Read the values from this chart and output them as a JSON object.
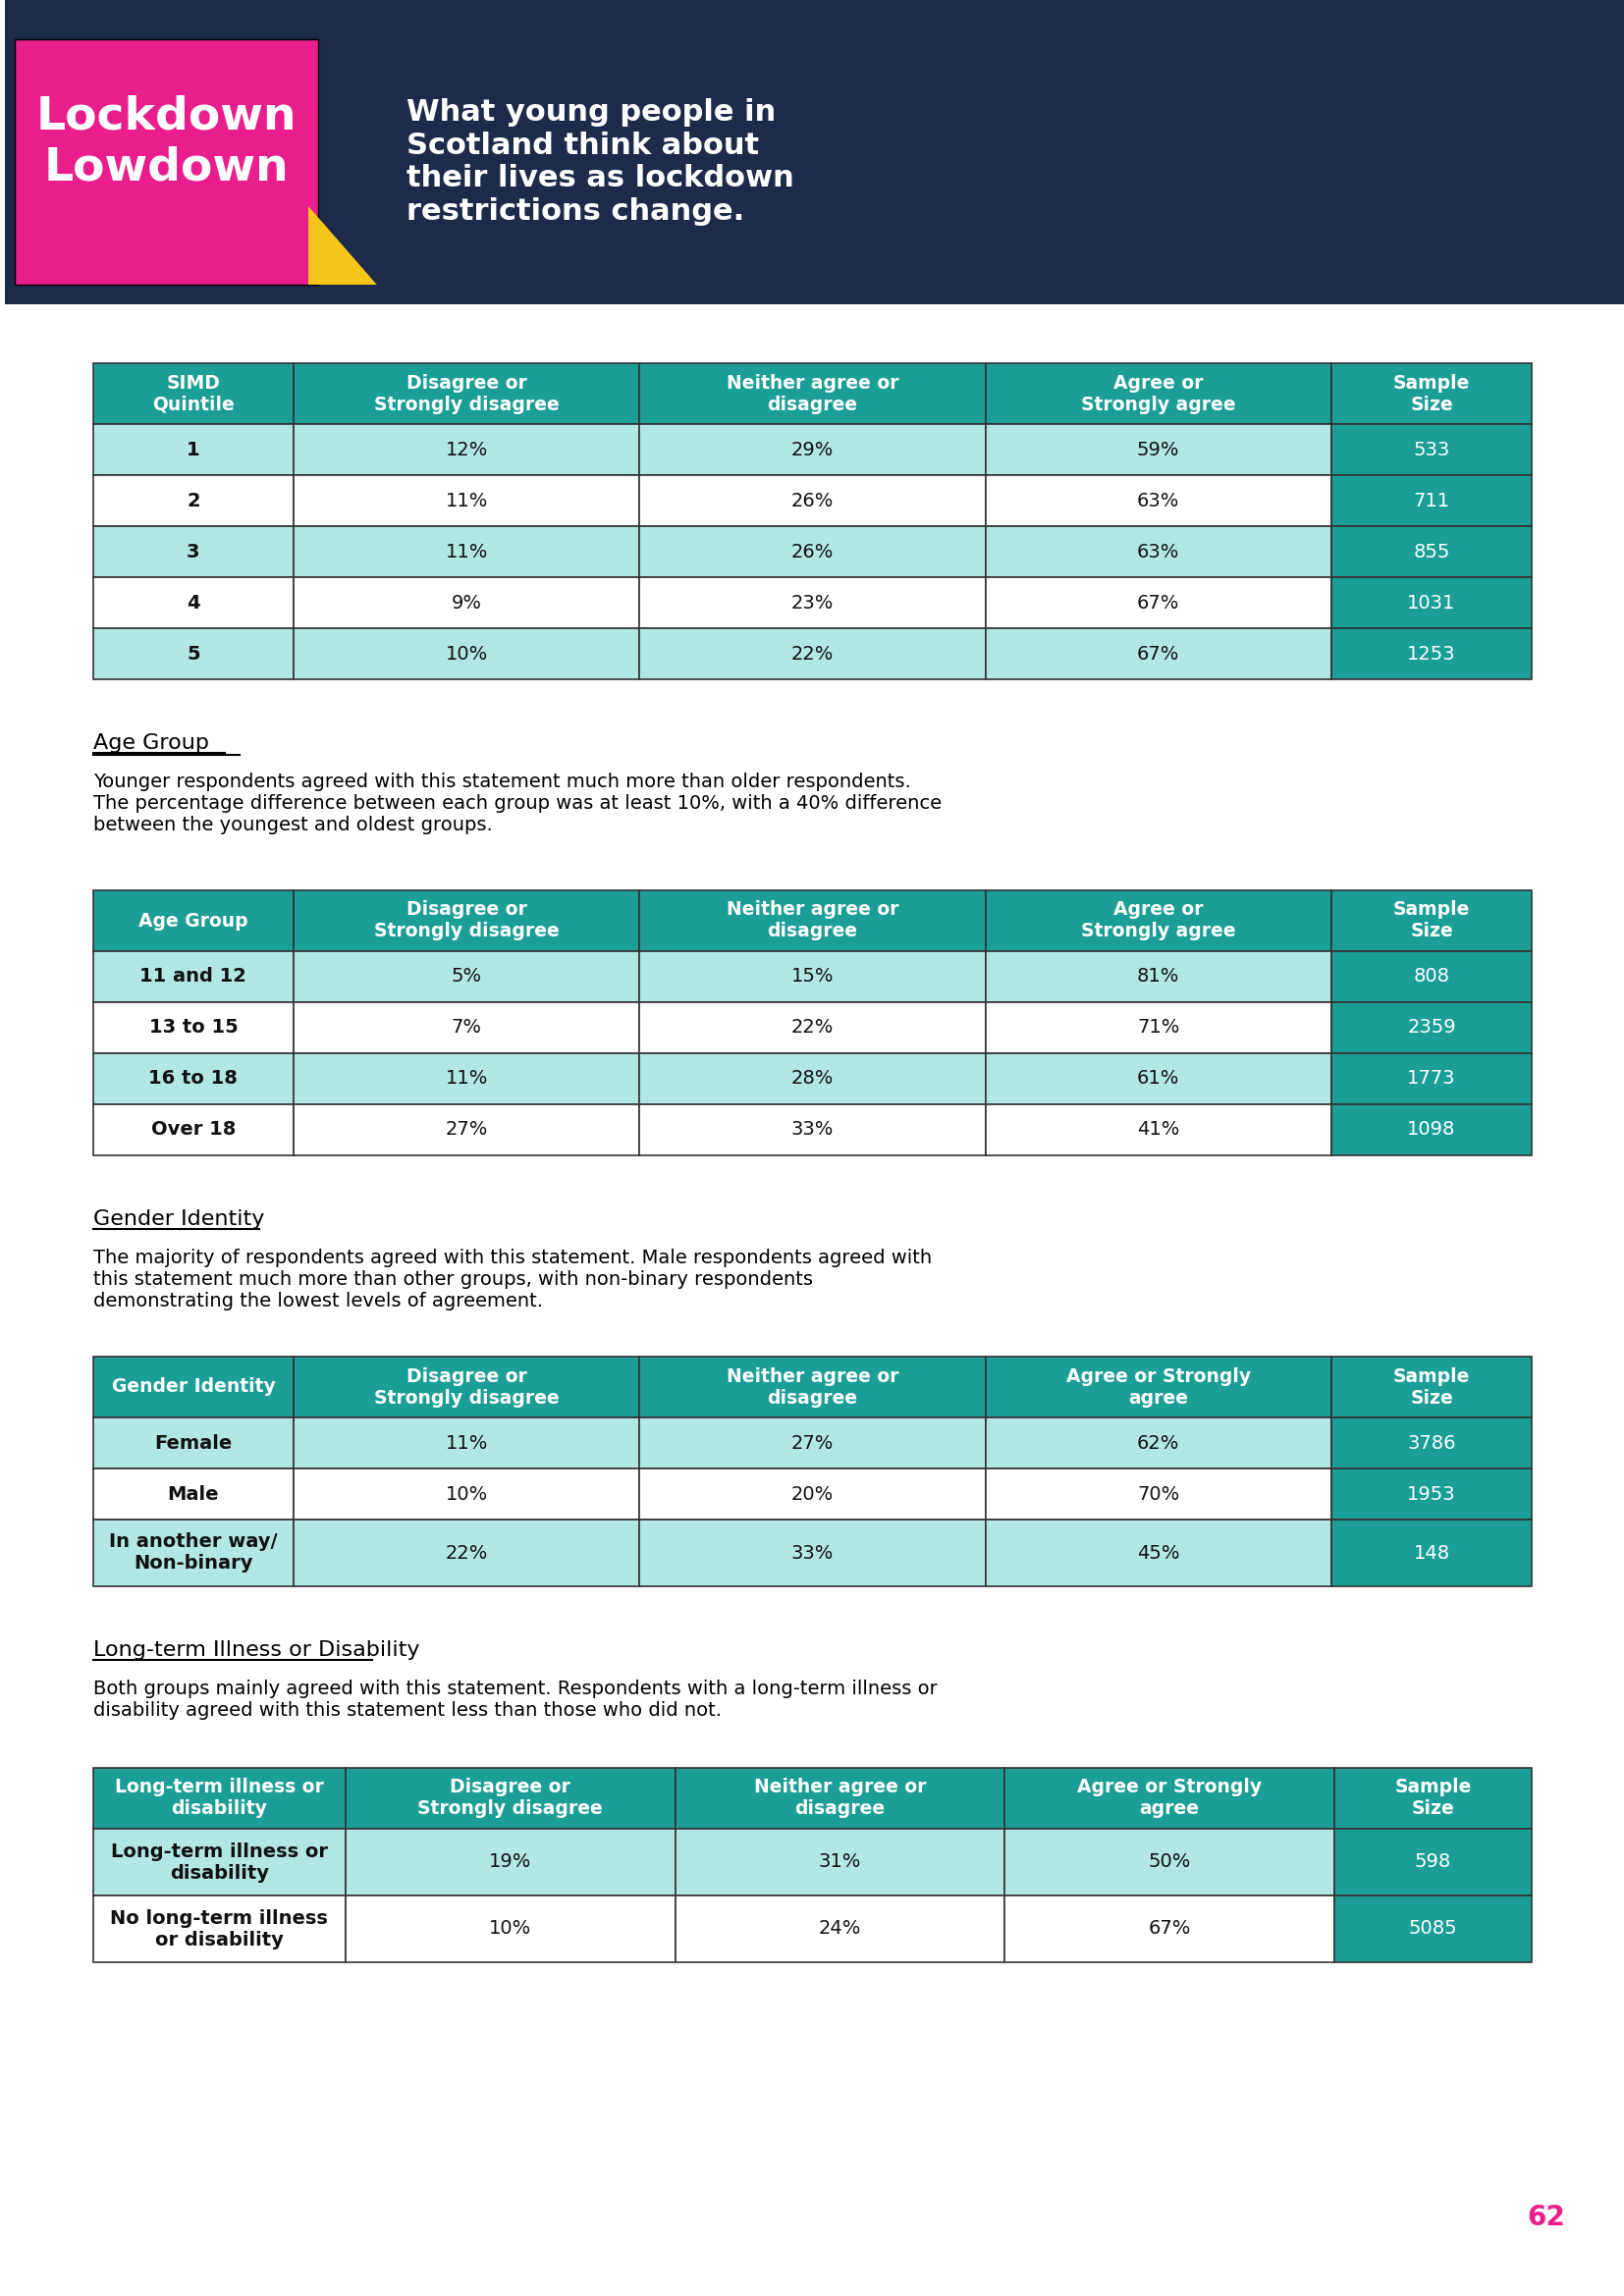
{
  "header_bg": "#1a9e96",
  "header_text": "#ffffff",
  "row_odd_bg": "#b2e8e4",
  "row_even_bg": "#ffffff",
  "sample_col_bg": "#1a9e96",
  "sample_col_text": "#ffffff",
  "border_color": "#333333",
  "page_bg": "#ffffff",
  "header_banner_bg": "#1e2a4a",
  "lockdown_bg": "#e91e8c",
  "yellow_shape": "#f5c518",
  "body_text_color": "#222222",
  "section_underline_color": "#000000",
  "page_number_color": "#e91e8c",
  "page_number": "62",
  "simd_table": {
    "headers": [
      "SIMD\nQuintile",
      "Disagree or\nStrongly disagree",
      "Neither agree or\ndisagree",
      "Agree or\nStrongly agree",
      "Sample\nSize"
    ],
    "rows": [
      [
        "1",
        "12%",
        "29%",
        "59%",
        "533"
      ],
      [
        "2",
        "11%",
        "26%",
        "63%",
        "711"
      ],
      [
        "3",
        "11%",
        "26%",
        "63%",
        "855"
      ],
      [
        "4",
        "9%",
        "23%",
        "67%",
        "1031"
      ],
      [
        "5",
        "10%",
        "22%",
        "67%",
        "1253"
      ]
    ]
  },
  "age_section_title": "Age Group",
  "age_section_text": "Younger respondents agreed with this statement much more than older respondents.\nThe percentage difference between each group was at least 10%, with a 40% difference\nbetween the youngest and oldest groups.",
  "age_table": {
    "headers": [
      "Age Group",
      "Disagree or\nStrongly disagree",
      "Neither agree or\ndisagree",
      "Agree or\nStrongly agree",
      "Sample\nSize"
    ],
    "rows": [
      [
        "11 and 12",
        "5%",
        "15%",
        "81%",
        "808"
      ],
      [
        "13 to 15",
        "7%",
        "22%",
        "71%",
        "2359"
      ],
      [
        "16 to 18",
        "11%",
        "28%",
        "61%",
        "1773"
      ],
      [
        "Over 18",
        "27%",
        "33%",
        "41%",
        "1098"
      ]
    ]
  },
  "gender_section_title": "Gender Identity",
  "gender_section_text": "The majority of respondents agreed with this statement. Male respondents agreed with\nthis statement much more than other groups, with non-binary respondents\ndemonstrating the lowest levels of agreement.",
  "gender_table": {
    "headers": [
      "Gender Identity",
      "Disagree or\nStrongly disagree",
      "Neither agree or\ndisagree",
      "Agree or Strongly\nagree",
      "Sample\nSize"
    ],
    "rows": [
      [
        "Female",
        "11%",
        "27%",
        "62%",
        "3786"
      ],
      [
        "Male",
        "10%",
        "20%",
        "70%",
        "1953"
      ],
      [
        "In another way/\nNon-binary",
        "22%",
        "33%",
        "45%",
        "148"
      ]
    ]
  },
  "longterm_section_title": "Long-term Illness or Disability",
  "longterm_section_text": "Both groups mainly agreed with this statement. Respondents with a long-term illness or\ndisability agreed with this statement less than those who did not.",
  "longterm_table": {
    "headers": [
      "Long-term illness or\ndisability",
      "Disagree or\nStrongly disagree",
      "Neither agree or\ndisagree",
      "Agree or Strongly\nagree",
      "Sample\nSize"
    ],
    "rows": [
      [
        "Long-term illness or\ndisability",
        "19%",
        "31%",
        "50%",
        "598"
      ],
      [
        "No long-term illness\nor disability",
        "10%",
        "24%",
        "67%",
        "5085"
      ]
    ]
  }
}
